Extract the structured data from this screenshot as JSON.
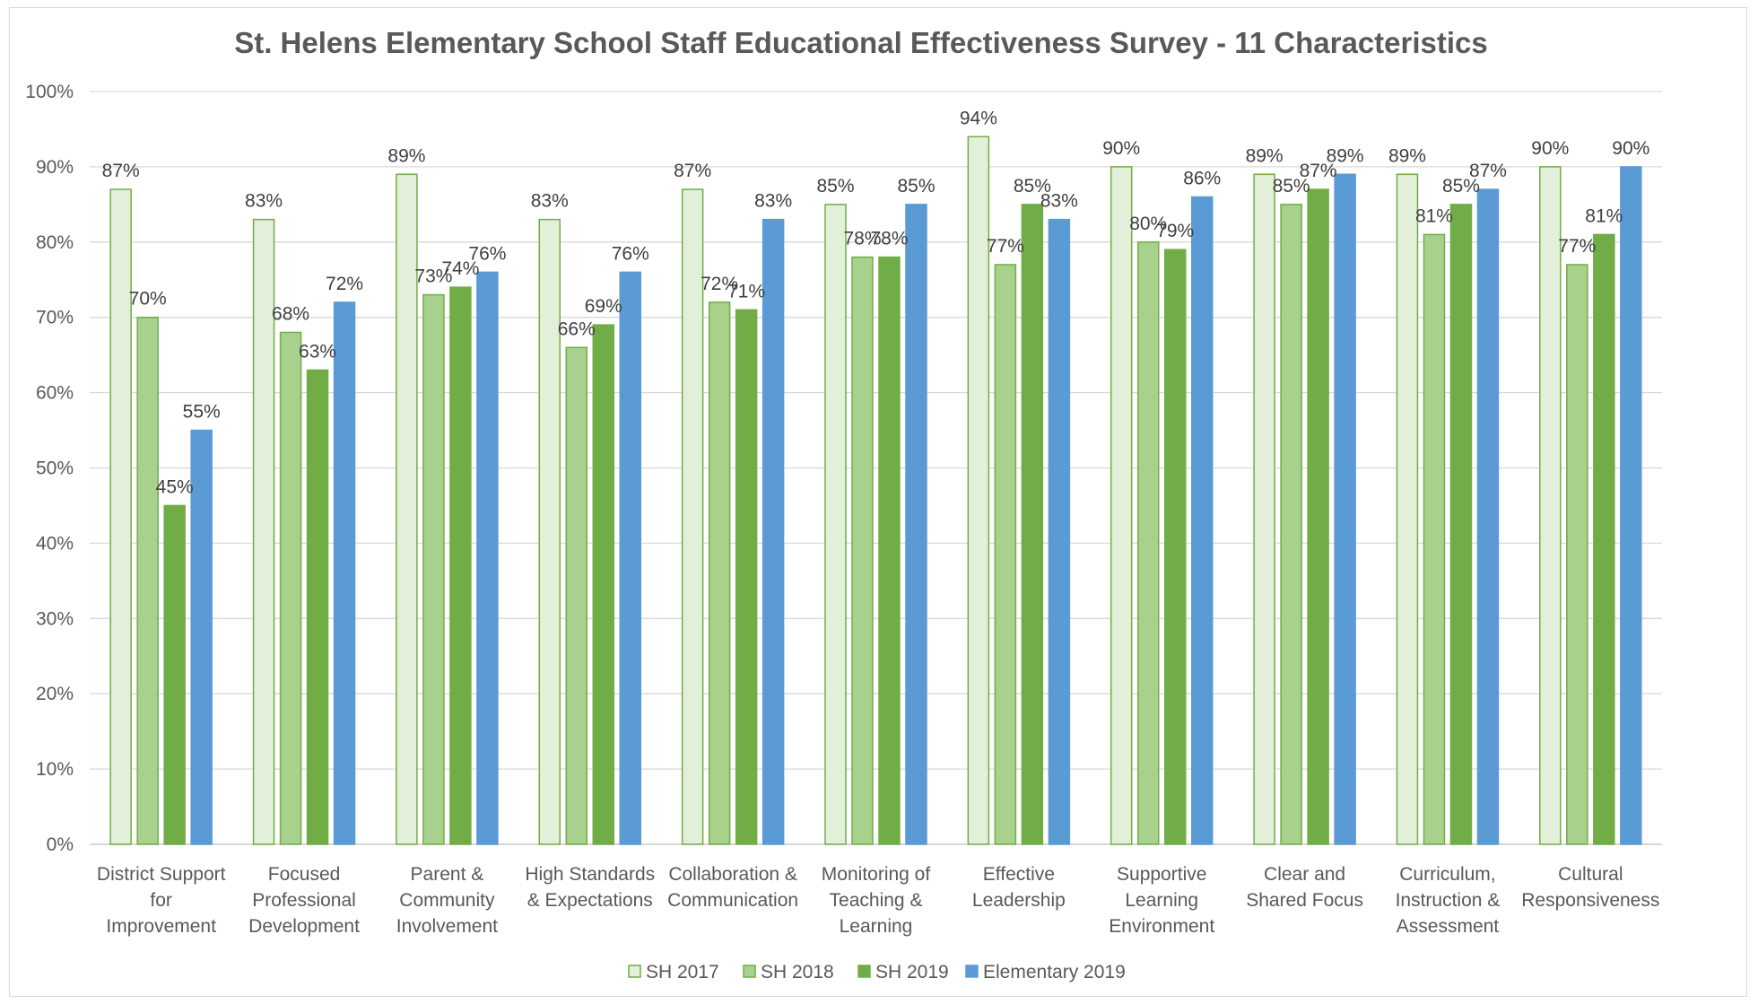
{
  "chart_data": {
    "type": "bar",
    "title": "St. Helens Elementary School Staff Educational Effectiveness Survey - 11 Characteristics",
    "xlabel": "",
    "ylabel": "",
    "ylim": [
      0,
      100
    ],
    "yticks": [
      "0%",
      "10%",
      "20%",
      "30%",
      "40%",
      "50%",
      "60%",
      "70%",
      "80%",
      "90%",
      "100%"
    ],
    "grid": true,
    "legend_position": "bottom",
    "categories": [
      [
        "District Support",
        "for",
        "Improvement"
      ],
      [
        "Focused",
        "Professional",
        "Development"
      ],
      [
        "Parent &",
        "Community",
        "Involvement"
      ],
      [
        "High Standards",
        "& Expectations"
      ],
      [
        "Collaboration &",
        "Communication"
      ],
      [
        "Monitoring of",
        "Teaching &",
        "Learning"
      ],
      [
        "Effective",
        "Leadership"
      ],
      [
        "Supportive",
        "Learning",
        "Environment"
      ],
      [
        "Clear and",
        "Shared Focus"
      ],
      [
        "Curriculum,",
        "Instruction &",
        "Assessment"
      ],
      [
        "Cultural",
        "Responsiveness"
      ]
    ],
    "series": [
      {
        "name": "SH 2017",
        "fill": "#e2f0d9",
        "stroke": "#70ad47",
        "values": [
          87,
          83,
          89,
          83,
          87,
          85,
          94,
          90,
          89,
          89,
          90
        ],
        "labels": [
          "87%",
          "83%",
          "89%",
          "83%",
          "87%",
          "85%",
          "94%",
          "90%",
          "89%",
          "89%",
          "90%"
        ]
      },
      {
        "name": "SH 2018",
        "fill": "#a9d18e",
        "stroke": "#70ad47",
        "values": [
          70,
          68,
          73,
          66,
          72,
          78,
          77,
          80,
          85,
          81,
          77
        ],
        "labels": [
          "70%",
          "68%",
          "73%",
          "66%",
          "72%",
          "78%",
          "77%",
          "80%",
          "85%",
          "81%",
          "77%"
        ]
      },
      {
        "name": "SH 2019",
        "fill": "#70ad47",
        "stroke": "#70ad47",
        "values": [
          45,
          63,
          74,
          69,
          71,
          78,
          85,
          79,
          87,
          85,
          81
        ],
        "labels": [
          "45%",
          "63%",
          "74%",
          "69%",
          "71%",
          "78%",
          "85%",
          "79%",
          "87%",
          "85%",
          "81%"
        ]
      },
      {
        "name": "Elementary 2019",
        "fill": "#5b9bd5",
        "stroke": "#5b9bd5",
        "values": [
          55,
          72,
          76,
          76,
          83,
          85,
          83,
          86,
          89,
          87,
          90
        ],
        "labels": [
          "55%",
          "72%",
          "76%",
          "76%",
          "83%",
          "85%",
          "83%",
          "86%",
          "89%",
          "87%",
          "90%"
        ]
      }
    ]
  }
}
